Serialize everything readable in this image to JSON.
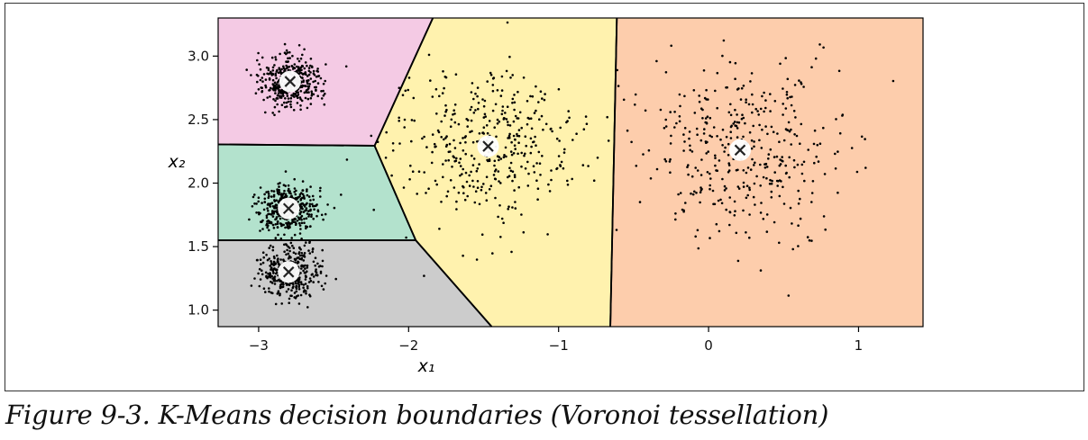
{
  "caption": "Figure 9-3. K-Means decision boundaries (Voronoi tessellation)",
  "chart_data": {
    "type": "scatter",
    "title": "",
    "xlabel": "x₁",
    "ylabel": "x₂",
    "xlim": [
      -3.27,
      1.43
    ],
    "ylim": [
      0.87,
      3.3
    ],
    "xticks": [
      {
        "value": -3,
        "label": "−3"
      },
      {
        "value": -2,
        "label": "−2"
      },
      {
        "value": -1,
        "label": "−1"
      },
      {
        "value": 0,
        "label": "0"
      },
      {
        "value": 1,
        "label": "1"
      }
    ],
    "yticks": [
      {
        "value": 1.0,
        "label": "1.0"
      },
      {
        "value": 1.5,
        "label": "1.5"
      },
      {
        "value": 2.0,
        "label": "2.0"
      },
      {
        "value": 2.5,
        "label": "2.5"
      },
      {
        "value": 3.0,
        "label": "3.0"
      }
    ],
    "centroids": [
      {
        "x": -2.8,
        "y": 1.8,
        "color": "#b3e2cd"
      },
      {
        "x": 0.21,
        "y": 2.26,
        "color": "#fdcdac"
      },
      {
        "x": -2.79,
        "y": 2.8,
        "color": "#f4cae4"
      },
      {
        "x": -1.47,
        "y": 2.29,
        "color": "#fff2ae"
      },
      {
        "x": -2.8,
        "y": 1.3,
        "color": "#cccccc"
      }
    ],
    "clusters": [
      {
        "cx": -2.8,
        "cy": 1.8,
        "std": 0.1,
        "n": 400
      },
      {
        "cx": 0.21,
        "cy": 2.26,
        "std": 0.35,
        "n": 400
      },
      {
        "cx": -2.79,
        "cy": 2.8,
        "std": 0.1,
        "n": 400
      },
      {
        "cx": -1.47,
        "cy": 2.29,
        "std": 0.3,
        "n": 400
      },
      {
        "cx": -2.8,
        "cy": 1.3,
        "std": 0.1,
        "n": 400
      }
    ],
    "boundary_color": "#000000",
    "point_color": "#000000",
    "centroid_fill": "#ffffff",
    "grid": false
  }
}
